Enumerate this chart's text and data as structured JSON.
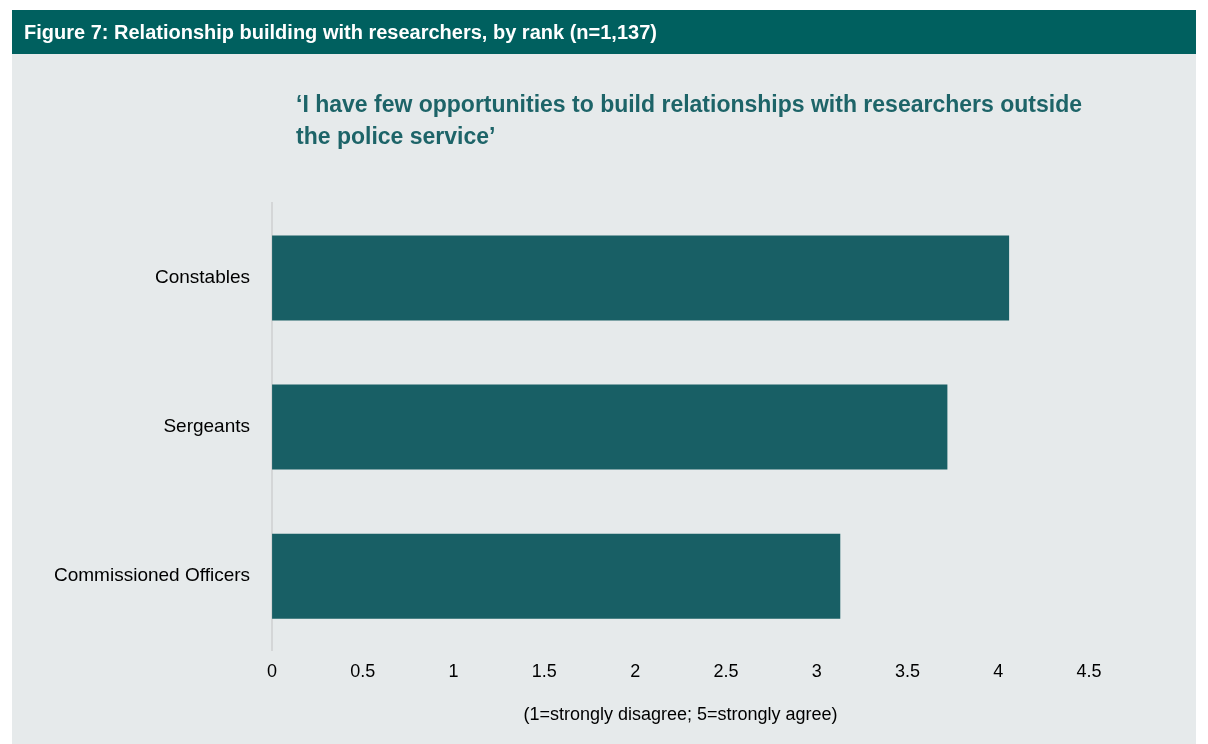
{
  "chart_data": {
    "type": "bar",
    "orientation": "horizontal",
    "title": "Figure 7: Relationship building with researchers, by rank (n=1,137)",
    "subtitle": "‘I have few opportunities to build relationships with researchers outside the police service’",
    "xlabel": "(1=strongly disagree; 5=strongly agree)",
    "categories": [
      "Constables",
      "Sergeants",
      "Commissioned Officers"
    ],
    "values": [
      4.06,
      3.72,
      3.13
    ],
    "color": "#185f65",
    "xlim": [
      0,
      4.5
    ],
    "xticks": [
      0,
      0.5,
      1,
      1.5,
      2,
      2.5,
      3,
      3.5,
      4,
      4.5
    ],
    "grid": false,
    "legend": false
  }
}
